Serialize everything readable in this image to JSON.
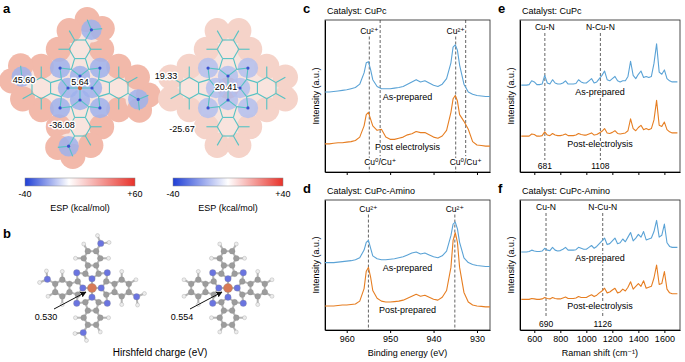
{
  "esp_maps": {
    "panel": "a",
    "maps": [
      {
        "values": [
          "45.60",
          "5.64",
          "-36.08"
        ],
        "colorbar": {
          "ticks": [
            {
              "value": -40,
              "label": "-40"
            },
            {
              "value": 60,
              "label": "+60"
            }
          ],
          "label": "ESP (kcal/mol)"
        }
      },
      {
        "values": [
          "19.33",
          "20.41",
          "-25.67"
        ],
        "colorbar": {
          "ticks": [
            {
              "value": -40,
              "label": "-40"
            },
            {
              "value": 40,
              "label": "+40"
            }
          ],
          "label": "ESP (kcal/mol)"
        }
      }
    ]
  },
  "charge_maps": {
    "panel": "b",
    "labels": [
      "0.530",
      "0.554"
    ],
    "caption": "Hirshfeld charge (eV)"
  },
  "chart_data": [
    {
      "type": "line",
      "panel": "c",
      "title": "Catalyst: CuPc",
      "ylabel": "Intensity (a.u.)",
      "x": [
        965,
        964,
        963,
        962,
        961,
        960,
        959,
        958,
        957,
        956,
        955.5,
        955,
        954.5,
        954,
        953,
        952,
        951,
        950,
        949,
        948,
        947,
        946,
        945,
        944,
        943,
        942,
        941,
        940,
        939,
        938,
        937,
        936,
        935.5,
        935,
        934.5,
        934,
        933,
        932,
        931,
        930,
        929,
        928,
        927
      ],
      "series": [
        {
          "name": "As-prepared",
          "color": "#5ba3d6",
          "values": [
            5.6,
            5.6,
            5.65,
            5.7,
            5.75,
            5.8,
            5.9,
            6.0,
            6.3,
            7.3,
            8.2,
            8.3,
            7.6,
            6.7,
            6.1,
            5.9,
            5.9,
            5.9,
            5.95,
            6.0,
            6.1,
            6.3,
            6.5,
            6.7,
            6.5,
            6.6,
            6.4,
            6.2,
            6.1,
            6.3,
            6.8,
            8.2,
            9.6,
            9.8,
            9.3,
            8.0,
            6.3,
            5.6,
            5.4,
            5.3,
            5.25,
            5.2,
            5.2
          ]
        },
        {
          "name": "Post electrolysis",
          "color": "#e67e22",
          "values": [
            1.0,
            1.0,
            1.05,
            1.1,
            1.1,
            1.15,
            1.2,
            1.3,
            1.6,
            2.6,
            3.6,
            3.8,
            3.2,
            2.6,
            2.2,
            2.3,
            1.6,
            1.4,
            1.4,
            1.5,
            1.6,
            1.8,
            1.9,
            2.1,
            2.0,
            2.0,
            1.8,
            1.6,
            1.5,
            1.7,
            2.2,
            3.8,
            5.0,
            5.3,
            4.8,
            3.6,
            3.0,
            2.3,
            1.2,
            0.9,
            0.85,
            0.8,
            0.8
          ]
        }
      ],
      "xlim": [
        965,
        927
      ],
      "ylim": [
        -1.5,
        12
      ],
      "xticks": [
        960,
        950,
        940,
        930
      ],
      "tick_labels": false,
      "annotations": [
        {
          "text": "Cu²⁺",
          "x": 954.8,
          "y": 10.8
        },
        {
          "text": "Cu²⁺",
          "x": 934.9,
          "y": 10.8
        },
        {
          "text": "Cu⁰/Cu⁺",
          "x": 952.3,
          "y": -0.9
        },
        {
          "text": "Cu⁰/Cu⁺",
          "x": 932.6,
          "y": -0.9
        }
      ]
    },
    {
      "type": "line",
      "panel": "d",
      "title": "Catalyst: CuPc-Amino",
      "ylabel": "Intensity (a.u.)",
      "xlabel": "Binding energy (eV)",
      "x": [
        965,
        964,
        963,
        962,
        961,
        960,
        959,
        958,
        957,
        956,
        955.5,
        955,
        954.5,
        954,
        953,
        952,
        951,
        950,
        949,
        948,
        947,
        946,
        945,
        944,
        943,
        942,
        941,
        940,
        939,
        938,
        937,
        936,
        935.5,
        935,
        934.5,
        934,
        933,
        932,
        931,
        930,
        929,
        928,
        927
      ],
      "series": [
        {
          "name": "As-prepared",
          "color": "#5ba3d6",
          "values": [
            5.5,
            5.5,
            5.5,
            5.55,
            5.6,
            5.65,
            5.7,
            5.8,
            6.0,
            6.8,
            7.6,
            7.8,
            7.0,
            6.2,
            5.9,
            5.8,
            5.8,
            5.85,
            5.9,
            6.0,
            6.1,
            6.3,
            6.5,
            6.6,
            6.4,
            6.5,
            6.3,
            6.1,
            6.0,
            6.2,
            6.7,
            8.3,
            9.5,
            9.7,
            9.0,
            7.6,
            6.0,
            5.5,
            5.3,
            5.2,
            5.15,
            5.1,
            5.1
          ]
        },
        {
          "name": "Post-prepared",
          "color": "#e67e22",
          "values": [
            1.0,
            1.0,
            1.0,
            1.05,
            1.1,
            1.1,
            1.15,
            1.2,
            1.5,
            2.8,
            4.6,
            5.0,
            4.0,
            2.6,
            1.8,
            1.5,
            1.4,
            1.4,
            1.45,
            1.5,
            1.6,
            1.8,
            2.0,
            2.2,
            2.0,
            2.1,
            1.9,
            1.7,
            1.6,
            1.9,
            2.6,
            5.0,
            7.8,
            8.6,
            7.6,
            5.0,
            2.4,
            1.4,
            1.1,
            1.0,
            0.95,
            0.9,
            0.9
          ]
        }
      ],
      "xlim": [
        965,
        927
      ],
      "ylim": [
        -1.5,
        12
      ],
      "xticks": [
        960,
        950,
        940,
        930
      ],
      "tick_labels": "x",
      "annotations": [
        {
          "text": "Cu²⁺",
          "x": 955,
          "y": 10.8
        },
        {
          "text": "Cu²⁺",
          "x": 935.1,
          "y": 10.8
        }
      ]
    },
    {
      "type": "line",
      "panel": "e",
      "title": "Catalyst: CuPc",
      "ylabel": "Intensity (a.u.)",
      "x": [
        500,
        520,
        540,
        560,
        580,
        600,
        620,
        640,
        660,
        680,
        700,
        720,
        740,
        760,
        780,
        800,
        820,
        840,
        860,
        880,
        900,
        920,
        940,
        960,
        980,
        1000,
        1020,
        1040,
        1060,
        1080,
        1100,
        1120,
        1140,
        1160,
        1180,
        1200,
        1220,
        1240,
        1260,
        1280,
        1300,
        1320,
        1340,
        1360,
        1380,
        1400,
        1420,
        1440,
        1460,
        1480,
        1500,
        1520,
        1540,
        1560,
        1580,
        1600,
        1620,
        1640,
        1660,
        1680,
        1700
      ],
      "series": [
        {
          "name": "As-prepared",
          "color": "#5ba3d6",
          "values": [
            6.0,
            6.0,
            6.0,
            6.05,
            6.4,
            6.3,
            6.05,
            6.05,
            6.1,
            6.9,
            6.2,
            6.1,
            6.5,
            6.2,
            6.1,
            6.1,
            6.2,
            6.4,
            6.1,
            6.1,
            6.1,
            6.15,
            6.5,
            6.3,
            6.2,
            6.2,
            6.4,
            6.6,
            6.2,
            6.3,
            6.6,
            6.9,
            7.3,
            6.5,
            6.4,
            6.6,
            6.8,
            6.4,
            6.3,
            6.4,
            6.4,
            6.8,
            8.2,
            6.9,
            6.6,
            7.0,
            7.3,
            6.7,
            6.8,
            6.7,
            6.8,
            8.0,
            9.8,
            7.2,
            7.0,
            7.4,
            6.6,
            6.4,
            6.3,
            6.3,
            6.3
          ]
        },
        {
          "name": "Post-electrolysis",
          "color": "#e67e22",
          "values": [
            1.3,
            1.3,
            1.3,
            1.3,
            1.5,
            1.45,
            1.3,
            1.3,
            1.35,
            1.7,
            1.4,
            1.35,
            1.55,
            1.4,
            1.35,
            1.35,
            1.4,
            1.5,
            1.35,
            1.35,
            1.35,
            1.4,
            1.55,
            1.45,
            1.4,
            1.4,
            1.5,
            1.6,
            1.4,
            1.45,
            1.6,
            1.75,
            2.0,
            1.6,
            1.55,
            1.65,
            1.8,
            1.55,
            1.5,
            1.55,
            1.6,
            1.8,
            2.9,
            2.0,
            1.8,
            2.1,
            2.3,
            1.9,
            2.0,
            1.9,
            2.0,
            2.8,
            4.6,
            2.3,
            2.2,
            2.6,
            1.9,
            1.7,
            1.6,
            1.6,
            1.6
          ]
        }
      ],
      "xlim": [
        490,
        1720
      ],
      "ylim": [
        -2,
        12
      ],
      "xticks": [
        600,
        800,
        1000,
        1200,
        1400,
        1600
      ],
      "tick_labels": false,
      "peaks": [
        {
          "name": "Cu-N",
          "x": 681
        },
        {
          "name": "N-Cu-N",
          "x": 1108
        }
      ]
    },
    {
      "type": "line",
      "panel": "f",
      "title": "Catalyst: CuPc-Amino",
      "ylabel": "Intensity (a.u.)",
      "xlabel": "Raman shift (cm⁻¹)",
      "x": [
        500,
        520,
        540,
        560,
        580,
        600,
        620,
        640,
        660,
        680,
        700,
        720,
        740,
        760,
        780,
        800,
        820,
        840,
        860,
        880,
        900,
        920,
        940,
        960,
        980,
        1000,
        1020,
        1040,
        1060,
        1080,
        1100,
        1120,
        1140,
        1160,
        1180,
        1200,
        1220,
        1240,
        1260,
        1280,
        1300,
        1320,
        1340,
        1360,
        1380,
        1400,
        1420,
        1440,
        1460,
        1480,
        1500,
        1520,
        1540,
        1560,
        1580,
        1600,
        1620,
        1640,
        1660,
        1680,
        1700
      ],
      "series": [
        {
          "name": "As-prepared",
          "color": "#5ba3d6",
          "values": [
            6.4,
            6.4,
            6.4,
            6.45,
            6.6,
            6.5,
            6.45,
            6.45,
            6.5,
            6.8,
            6.6,
            6.55,
            6.9,
            6.6,
            6.5,
            6.55,
            6.7,
            6.9,
            6.6,
            6.6,
            6.6,
            6.65,
            6.9,
            6.8,
            6.7,
            6.7,
            6.9,
            7.1,
            6.8,
            7.0,
            7.3,
            7.6,
            7.9,
            7.2,
            7.3,
            7.6,
            7.9,
            7.3,
            7.4,
            7.8,
            7.5,
            8.0,
            8.5,
            7.6,
            7.9,
            8.3,
            8.0,
            8.6,
            7.7,
            7.8,
            7.9,
            8.6,
            9.8,
            8.0,
            8.2,
            9.4,
            7.4,
            7.0,
            6.9,
            6.9,
            6.9
          ]
        },
        {
          "name": "Post-electrolysis",
          "color": "#e67e22",
          "values": [
            1.3,
            1.3,
            1.3,
            1.3,
            1.4,
            1.35,
            1.3,
            1.3,
            1.35,
            1.5,
            1.4,
            1.35,
            1.5,
            1.4,
            1.35,
            1.35,
            1.45,
            1.55,
            1.4,
            1.4,
            1.4,
            1.45,
            1.6,
            1.5,
            1.5,
            1.5,
            1.65,
            1.8,
            1.6,
            1.75,
            2.0,
            2.2,
            2.5,
            2.0,
            2.1,
            2.3,
            2.5,
            2.0,
            2.1,
            2.4,
            2.2,
            2.6,
            3.2,
            2.4,
            2.7,
            3.0,
            2.7,
            3.3,
            2.5,
            2.6,
            2.7,
            3.6,
            5.0,
            2.9,
            3.0,
            4.3,
            2.4,
            2.0,
            1.9,
            1.9,
            1.9
          ]
        }
      ],
      "xlim": [
        490,
        1720
      ],
      "ylim": [
        -2,
        12
      ],
      "xticks": [
        600,
        800,
        1000,
        1200,
        1400,
        1600
      ],
      "tick_labels": "x",
      "peaks": [
        {
          "name": "Cu-N",
          "x": 690
        },
        {
          "name": "N-Cu-N",
          "x": 1126
        }
      ]
    }
  ]
}
